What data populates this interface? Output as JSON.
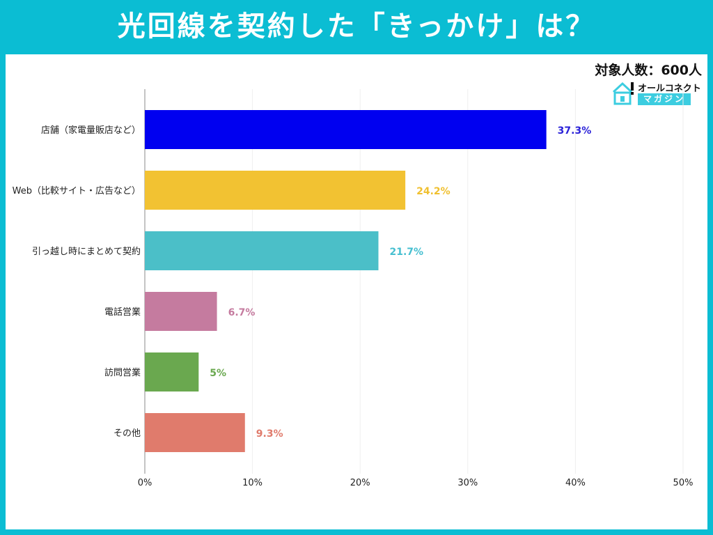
{
  "title": "光回線を契約した「きっかけ」は？",
  "sample_size": "対象人数：600人",
  "logo": {
    "line1": "オールコネクト",
    "line2": "マガジン"
  },
  "chart_data": {
    "type": "bar",
    "orientation": "horizontal",
    "categories": [
      "店舗（家電量販店など）",
      "Web（比較サイト・広告など）",
      "引っ越し時にまとめて契約",
      "電話営業",
      "訪問営業",
      "その他"
    ],
    "values": [
      37.3,
      24.2,
      21.7,
      6.7,
      5,
      9.3
    ],
    "data_labels": [
      "37.3%",
      "24.2%",
      "21.7%",
      "6.7%",
      "5%",
      "9.3%"
    ],
    "colors": [
      "#0000f0",
      "#f2c232",
      "#4bbfc8",
      "#c57b9f",
      "#6aa84f",
      "#e07b6c"
    ],
    "label_colors": [
      "#2b22d8",
      "#f0c030",
      "#46bfd0",
      "#c57b9f",
      "#6aa84f",
      "#e07b6c"
    ],
    "xlim": [
      0,
      50
    ],
    "xticks": [
      "0%",
      "10%",
      "20%",
      "30%",
      "40%",
      "50%"
    ],
    "grid": true,
    "xlabel": "",
    "ylabel": ""
  }
}
